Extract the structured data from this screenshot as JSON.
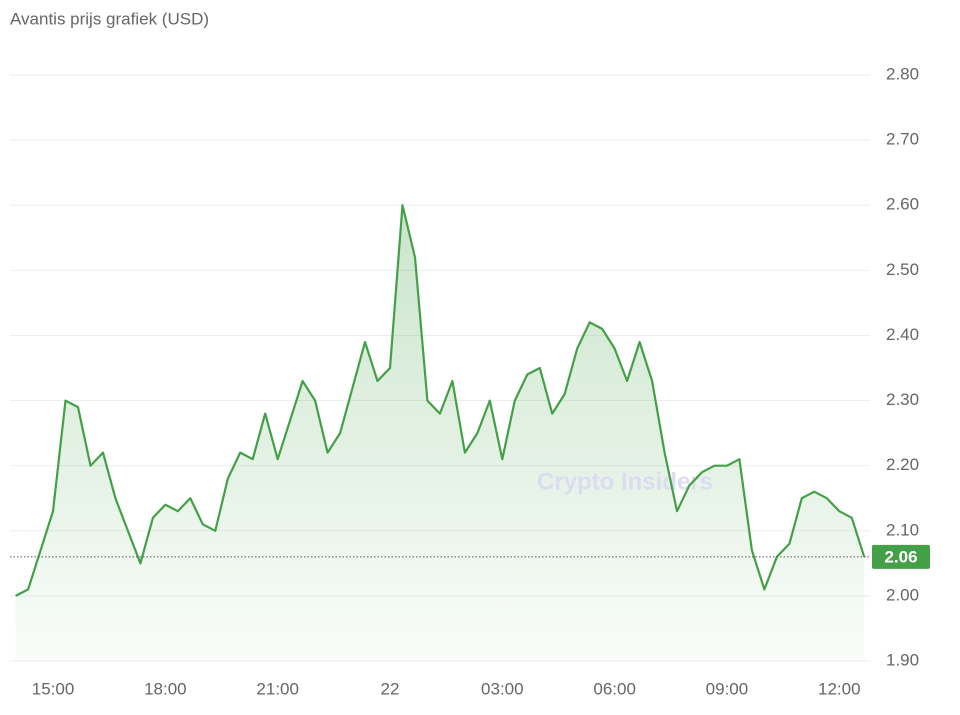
{
  "chart_data": {
    "type": "line",
    "title": "Avantis prijs grafiek (USD)",
    "watermark": "Crypto Insiders",
    "categories": [
      null,
      null,
      null,
      "15:00",
      null,
      null,
      null,
      null,
      null,
      null,
      null,
      null,
      "18:00",
      null,
      null,
      null,
      null,
      null,
      null,
      null,
      null,
      "21:00",
      null,
      null,
      null,
      null,
      null,
      null,
      null,
      null,
      "22",
      null,
      null,
      null,
      null,
      null,
      null,
      null,
      null,
      "03:00",
      null,
      null,
      null,
      null,
      null,
      null,
      null,
      null,
      "06:00",
      null,
      null,
      null,
      null,
      null,
      null,
      null,
      null,
      "09:00",
      null,
      null,
      null,
      null,
      null,
      null,
      null,
      null,
      "12:00",
      null,
      null
    ],
    "values": [
      2.0,
      2.01,
      2.07,
      2.13,
      2.3,
      2.29,
      2.2,
      2.22,
      2.15,
      2.1,
      2.05,
      2.12,
      2.14,
      2.13,
      2.15,
      2.11,
      2.1,
      2.18,
      2.22,
      2.21,
      2.28,
      2.21,
      2.27,
      2.33,
      2.3,
      2.22,
      2.25,
      2.32,
      2.39,
      2.33,
      2.35,
      2.6,
      2.52,
      2.3,
      2.28,
      2.33,
      2.22,
      2.25,
      2.3,
      2.21,
      2.3,
      2.34,
      2.35,
      2.28,
      2.31,
      2.38,
      2.42,
      2.41,
      2.38,
      2.33,
      2.39,
      2.33,
      2.22,
      2.13,
      2.17,
      2.19,
      2.2,
      2.2,
      2.21,
      2.07,
      2.01,
      2.06,
      2.08,
      2.15,
      2.16,
      2.15,
      2.13,
      2.12,
      2.06
    ],
    "color": "#43a047",
    "last_price": 2.06,
    "ylim": [
      1.9,
      2.8
    ],
    "yticks": [
      {
        "value": 1.9,
        "label": "1.90"
      },
      {
        "value": 2.0,
        "label": "2.00"
      },
      {
        "value": 2.1,
        "label": "2.10"
      },
      {
        "value": 2.2,
        "label": "2.20"
      },
      {
        "value": 2.3,
        "label": "2.30"
      },
      {
        "value": 2.4,
        "label": "2.40"
      },
      {
        "value": 2.5,
        "label": "2.50"
      },
      {
        "value": 2.6,
        "label": "2.60"
      },
      {
        "value": 2.7,
        "label": "2.70"
      },
      {
        "value": 2.8,
        "label": "2.80"
      }
    ],
    "grid": true
  }
}
